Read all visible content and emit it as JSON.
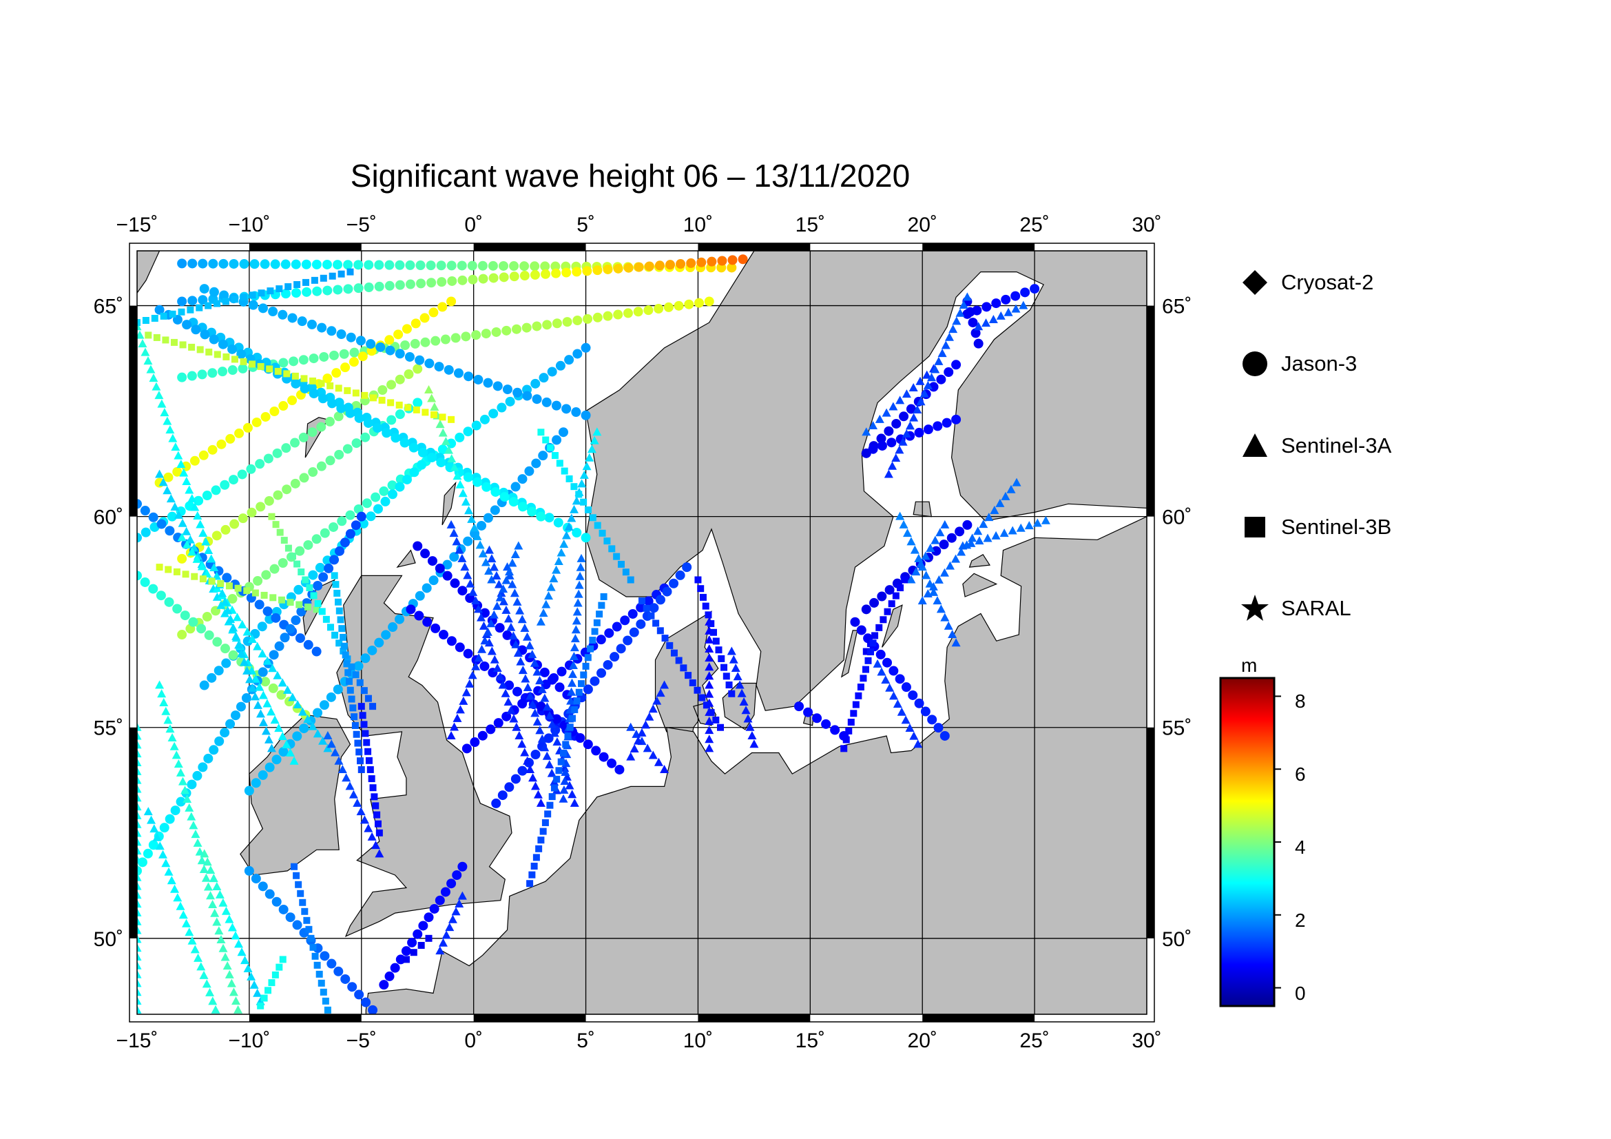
{
  "title": "Significant wave height 06 – 13/11/2020",
  "map": {
    "lon_range": [
      -15,
      30
    ],
    "lat_range": [
      48.2,
      66.3
    ],
    "lon_ticks": [
      "−15˚",
      "−10˚",
      "−5˚",
      "0˚",
      "5˚",
      "10˚",
      "15˚",
      "20˚",
      "25˚",
      "30˚"
    ],
    "lat_ticks": [
      "65˚",
      "60˚",
      "55˚",
      "50˚"
    ],
    "colors": {
      "land": "#bdbdbd",
      "sea": "#ffffff",
      "frame": "#000000",
      "grid": "#000000"
    }
  },
  "legend": [
    {
      "label": "Cryosat-2",
      "icon": "diamond-icon"
    },
    {
      "label": "Jason-3",
      "icon": "circle-icon"
    },
    {
      "label": "Sentinel-3A",
      "icon": "triangle-icon"
    },
    {
      "label": "Sentinel-3B",
      "icon": "square-icon"
    },
    {
      "label": "SARAL",
      "icon": "star-icon"
    }
  ],
  "colorbar": {
    "unit": "m",
    "range": [
      -0.5,
      8.5
    ],
    "ticks": [
      "8",
      "6",
      "4",
      "2",
      "0"
    ],
    "colors": [
      "#00008f",
      "#0000ff",
      "#007fff",
      "#00ffff",
      "#7fff7f",
      "#ffff00",
      "#ff7f00",
      "#ff0000",
      "#7f0000"
    ]
  },
  "chart_data": {
    "type": "scatter",
    "title": "Significant wave height 06 – 13/11/2020",
    "xlabel": "",
    "ylabel": "",
    "xlim": [
      -15,
      30
    ],
    "ylim": [
      48.2,
      66.3
    ],
    "colorbar_unit": "m",
    "colorbar_range": [
      -0.5,
      8.5
    ],
    "series": [
      {
        "name": "Jason-3",
        "marker": "circle",
        "tracks": [
          {
            "from": [
              -13,
              66
            ],
            "to": [
              11.5,
              65.9
            ],
            "hs_from": 2.0,
            "hs_to": 5.5
          },
          {
            "from": [
              -13,
              65.1
            ],
            "to": [
              12,
              66.1
            ],
            "hs_from": 2.0,
            "hs_to": 6.5
          },
          {
            "from": [
              -13,
              63.3
            ],
            "to": [
              10.5,
              65.1
            ],
            "hs_from": 3.2,
            "hs_to": 5.0
          },
          {
            "from": [
              -14,
              60.8
            ],
            "to": [
              -1,
              65.1
            ],
            "hs_from": 5.0,
            "hs_to": 5.2
          },
          {
            "from": [
              -15,
              59.5
            ],
            "to": [
              -2.5,
              63.5
            ],
            "hs_from": 2.5,
            "hs_to": 4.5
          },
          {
            "from": [
              -13,
              59
            ],
            "to": [
              -2.5,
              62.7
            ],
            "hs_from": 5.0,
            "hs_to": 3.0
          },
          {
            "from": [
              -13,
              57.2
            ],
            "to": [
              5,
              64
            ],
            "hs_from": 4.5,
            "hs_to": 2.0
          },
          {
            "from": [
              -12,
              56
            ],
            "to": [
              -2,
              61.4
            ],
            "hs_from": 2.2,
            "hs_to": 2.8
          },
          {
            "from": [
              -10,
              53.5
            ],
            "to": [
              4,
              62
            ],
            "hs_from": 2.3,
            "hs_to": 2.0
          },
          {
            "from": [
              -12.5,
              64.6
            ],
            "to": [
              5,
              59.5
            ],
            "hs_from": 2.3,
            "hs_to": 2.8
          },
          {
            "from": [
              -14,
              64.9
            ],
            "to": [
              3,
              60
            ],
            "hs_from": 2.0,
            "hs_to": 3.0
          },
          {
            "from": [
              -12,
              65.4
            ],
            "to": [
              5,
              62.4
            ],
            "hs_from": 2.2,
            "hs_to": 2.0
          },
          {
            "from": [
              -15,
              60.3
            ],
            "to": [
              -7,
              56.8
            ],
            "hs_from": 1.8,
            "hs_to": 1.5
          },
          {
            "from": [
              -15,
              58.6
            ],
            "to": [
              -7.5,
              55.3
            ],
            "hs_from": 3.0,
            "hs_to": 4.5
          },
          {
            "from": [
              -15,
              51.6
            ],
            "to": [
              -5,
              60
            ],
            "hs_from": 3.0,
            "hs_to": 1.2
          },
          {
            "from": [
              -10,
              51.6
            ],
            "to": [
              -4.5,
              48.3
            ],
            "hs_from": 2.0,
            "hs_to": 1.2
          },
          {
            "from": [
              -2.8,
              57.8
            ],
            "to": [
              4.5,
              54.8
            ],
            "hs_from": 0.6,
            "hs_to": 0.8
          },
          {
            "from": [
              -2.5,
              59.3
            ],
            "to": [
              4.5,
              55.6
            ],
            "hs_from": 0.5,
            "hs_to": 0.7
          },
          {
            "from": [
              -0.3,
              54.5
            ],
            "to": [
              8.5,
              58.3
            ],
            "hs_from": 0.6,
            "hs_to": 0.8
          },
          {
            "from": [
              1,
              53.2
            ],
            "to": [
              9.5,
              58.8
            ],
            "hs_from": 0.9,
            "hs_to": 1.2
          },
          {
            "from": [
              3,
              55.5
            ],
            "to": [
              6.5,
              54
            ],
            "hs_from": 0.5,
            "hs_to": 0.7
          },
          {
            "from": [
              -4,
              48.9
            ],
            "to": [
              -0.5,
              51.7
            ],
            "hs_from": 0.6,
            "hs_to": 0.7
          },
          {
            "from": [
              17,
              57.5
            ],
            "to": [
              21,
              54.8
            ],
            "hs_from": 0.5,
            "hs_to": 1.0
          },
          {
            "from": [
              17.5,
              57.8
            ],
            "to": [
              22,
              59.8
            ],
            "hs_from": 0.4,
            "hs_to": 0.5
          },
          {
            "from": [
              17.5,
              61.5
            ],
            "to": [
              21.5,
              63.6
            ],
            "hs_from": 0.4,
            "hs_to": 0.6
          },
          {
            "from": [
              17.8,
              61.6
            ],
            "to": [
              21.5,
              62.3
            ],
            "hs_from": 0.5,
            "hs_to": 0.7
          },
          {
            "from": [
              22,
              64.8
            ],
            "to": [
              25,
              65.4
            ],
            "hs_from": 0.5,
            "hs_to": 0.8
          },
          {
            "from": [
              22,
              65.1
            ],
            "to": [
              22.5,
              64.1
            ],
            "hs_from": 0.5,
            "hs_to": 0.5
          },
          {
            "from": [
              14.5,
              55.5
            ],
            "to": [
              16.5,
              54.8
            ],
            "hs_from": 0.7,
            "hs_to": 0.6
          }
        ]
      },
      {
        "name": "Sentinel-3A",
        "marker": "triangle",
        "tracks": [
          {
            "from": [
              -14,
              61
            ],
            "to": [
              -8,
              54.2
            ],
            "hs_from": 2.5,
            "hs_to": 2.8
          },
          {
            "from": [
              -13,
              59.5
            ],
            "to": [
              -6.5,
              54.5
            ],
            "hs_from": 3.0,
            "hs_to": 2.4
          },
          {
            "from": [
              -15,
              64.5
            ],
            "to": [
              -9,
              54.5
            ],
            "hs_from": 3.2,
            "hs_to": 2.3
          },
          {
            "from": [
              -12,
              52
            ],
            "to": [
              -9.5,
              48.5
            ],
            "hs_from": 3.4,
            "hs_to": 2.4
          },
          {
            "from": [
              -14.5,
              53
            ],
            "to": [
              -11.5,
              48.3
            ],
            "hs_from": 2.6,
            "hs_to": 3.2
          },
          {
            "from": [
              -15,
              55
            ],
            "to": [
              -15,
              48.3
            ],
            "hs_from": 3.0,
            "hs_to": 2.8
          },
          {
            "from": [
              -14,
              56
            ],
            "to": [
              -10.5,
              48.3
            ],
            "hs_from": 3.0,
            "hs_to": 3.5
          },
          {
            "from": [
              -2,
              63
            ],
            "to": [
              0.8,
              58.5
            ],
            "hs_from": 4.2,
            "hs_to": 1.5
          },
          {
            "from": [
              -1,
              59.8
            ],
            "to": [
              3,
              53.2
            ],
            "hs_from": 1.2,
            "hs_to": 0.8
          },
          {
            "from": [
              0.7,
              59.2
            ],
            "to": [
              3.7,
              53.5
            ],
            "hs_from": 1.2,
            "hs_to": 1.0
          },
          {
            "from": [
              1.5,
              58.8
            ],
            "to": [
              4.5,
              53.2
            ],
            "hs_from": 1.4,
            "hs_to": 0.9
          },
          {
            "from": [
              4.8,
              59
            ],
            "to": [
              4,
              53.3
            ],
            "hs_from": 1.6,
            "hs_to": 1.2
          },
          {
            "from": [
              5.5,
              62
            ],
            "to": [
              3,
              57.5
            ],
            "hs_from": 2.8,
            "hs_to": 1.6
          },
          {
            "from": [
              -1,
              54.8
            ],
            "to": [
              2,
              59.3
            ],
            "hs_from": 0.8,
            "hs_to": 1.6
          },
          {
            "from": [
              7,
              55
            ],
            "to": [
              8.5,
              54
            ],
            "hs_from": 1.2,
            "hs_to": 0.8
          },
          {
            "from": [
              8.5,
              56
            ],
            "to": [
              7,
              54.3
            ],
            "hs_from": 1.0,
            "hs_to": 0.9
          },
          {
            "from": [
              10.5,
              57.5
            ],
            "to": [
              10.5,
              54.5
            ],
            "hs_from": 0.6,
            "hs_to": 0.8
          },
          {
            "from": [
              11.5,
              56.8
            ],
            "to": [
              12.5,
              54.6
            ],
            "hs_from": 1.0,
            "hs_to": 0.8
          },
          {
            "from": [
              -4.2,
              52
            ],
            "to": [
              -6.5,
              54.8
            ],
            "hs_from": 0.8,
            "hs_to": 1.5
          },
          {
            "from": [
              -0.5,
              51
            ],
            "to": [
              -1.5,
              49.7
            ],
            "hs_from": 1.0,
            "hs_to": 1.0
          },
          {
            "from": [
              17.5,
              62
            ],
            "to": [
              20.5,
              63.5
            ],
            "hs_from": 1.5,
            "hs_to": 1.0
          },
          {
            "from": [
              18.5,
              61
            ],
            "to": [
              22,
              65.2
            ],
            "hs_from": 1.0,
            "hs_to": 1.5
          },
          {
            "from": [
              22.5,
              64.5
            ],
            "to": [
              24.5,
              65
            ],
            "hs_from": 1.2,
            "hs_to": 1.5
          },
          {
            "from": [
              20,
              58
            ],
            "to": [
              24.2,
              60.8
            ],
            "hs_from": 1.5,
            "hs_to": 1.6
          },
          {
            "from": [
              19,
              60
            ],
            "to": [
              21.5,
              57
            ],
            "hs_from": 1.8,
            "hs_to": 1.4
          },
          {
            "from": [
              18,
              56.5
            ],
            "to": [
              19.8,
              54.6
            ],
            "hs_from": 1.2,
            "hs_to": 1.0
          },
          {
            "from": [
              21.8,
              59.3
            ],
            "to": [
              25.5,
              59.9
            ],
            "hs_from": 1.5,
            "hs_to": 1.7
          },
          {
            "from": [
              19.5,
              58.5
            ],
            "to": [
              21,
              59.8
            ],
            "hs_from": 1.6,
            "hs_to": 1.5
          }
        ]
      },
      {
        "name": "Sentinel-3B",
        "marker": "square",
        "tracks": [
          {
            "from": [
              -14.5,
              64.3
            ],
            "to": [
              -1,
              62.3
            ],
            "hs_from": 4.5,
            "hs_to": 5.0
          },
          {
            "from": [
              -15,
              64.6
            ],
            "to": [
              -5.5,
              65.8
            ],
            "hs_from": 2.5,
            "hs_to": 2.0
          },
          {
            "from": [
              -14,
              58.8
            ],
            "to": [
              -7,
              57.8
            ],
            "hs_from": 4.8,
            "hs_to": 4.0
          },
          {
            "from": [
              -9,
              60
            ],
            "to": [
              -4.5,
              55.5
            ],
            "hs_from": 4.3,
            "hs_to": 1.3
          },
          {
            "from": [
              -6.2,
              58.6
            ],
            "to": [
              -5,
              54
            ],
            "hs_from": 2.5,
            "hs_to": 1.2
          },
          {
            "from": [
              -5,
              55.5
            ],
            "to": [
              -4.2,
              52.5
            ],
            "hs_from": 0.8,
            "hs_to": 0.7
          },
          {
            "from": [
              -9.5,
              48.4
            ],
            "to": [
              -8.5,
              49.5
            ],
            "hs_from": 3.0,
            "hs_to": 3.0
          },
          {
            "from": [
              -8,
              51.7
            ],
            "to": [
              -6.5,
              48.3
            ],
            "hs_from": 1.5,
            "hs_to": 2.0
          },
          {
            "from": [
              3,
              62
            ],
            "to": [
              7,
              58.5
            ],
            "hs_from": 3.0,
            "hs_to": 2.0
          },
          {
            "from": [
              5.8,
              58.1
            ],
            "to": [
              2.5,
              51.3
            ],
            "hs_from": 1.8,
            "hs_to": 1.2
          },
          {
            "from": [
              7.5,
              58
            ],
            "to": [
              11,
              55
            ],
            "hs_from": 1.3,
            "hs_to": 0.7
          },
          {
            "from": [
              10,
              58.5
            ],
            "to": [
              11.5,
              55.8
            ],
            "hs_from": 0.7,
            "hs_to": 0.8
          },
          {
            "from": [
              17.5,
              56.8
            ],
            "to": [
              19.2,
              58.5
            ],
            "hs_from": 0.5,
            "hs_to": 0.6
          },
          {
            "from": [
              16.5,
              54.5
            ],
            "to": [
              17.8,
              57
            ],
            "hs_from": 0.6,
            "hs_to": 0.8
          },
          {
            "from": [
              -3,
              49.5
            ],
            "to": [
              -2,
              50
            ],
            "hs_from": 0.5,
            "hs_to": 0.5
          }
        ]
      },
      {
        "name": "Cryosat-2",
        "marker": "diamond",
        "tracks": []
      },
      {
        "name": "SARAL",
        "marker": "star",
        "tracks": []
      }
    ]
  }
}
